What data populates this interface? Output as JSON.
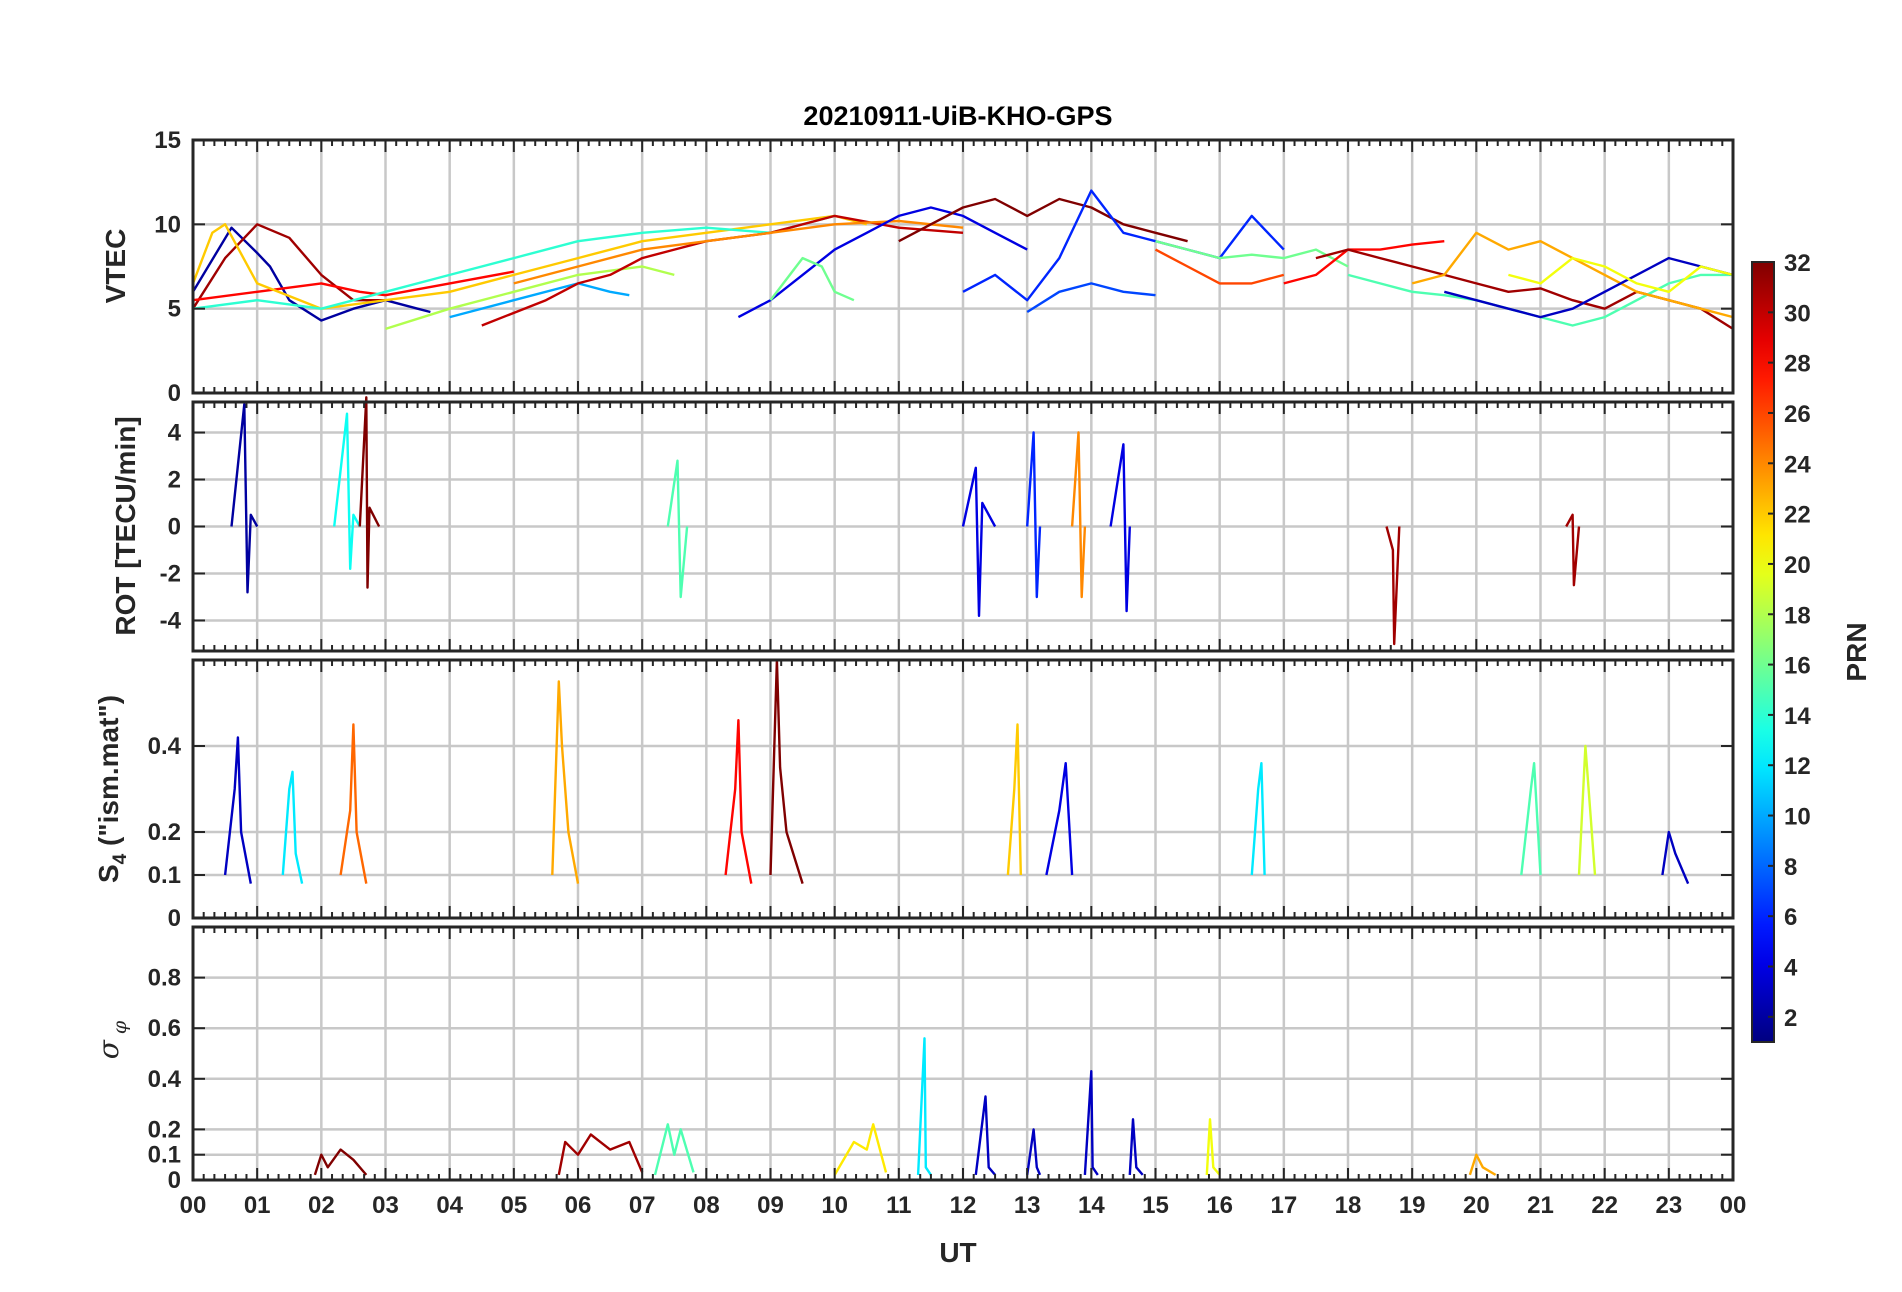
{
  "title": "20210911-UiB-KHO-GPS",
  "xaxis": {
    "label": "UT",
    "range": [
      0,
      24
    ],
    "ticks": [
      "00",
      "01",
      "02",
      "03",
      "04",
      "05",
      "06",
      "07",
      "08",
      "09",
      "10",
      "11",
      "12",
      "13",
      "14",
      "15",
      "16",
      "17",
      "18",
      "19",
      "20",
      "21",
      "22",
      "23",
      "00"
    ]
  },
  "colorbar": {
    "label": "PRN",
    "range": [
      1,
      32
    ],
    "ticks": [
      "2",
      "4",
      "6",
      "8",
      "10",
      "12",
      "14",
      "16",
      "18",
      "20",
      "22",
      "24",
      "26",
      "28",
      "30",
      "32"
    ]
  },
  "chart_data": [
    {
      "type": "line",
      "name": "VTEC",
      "ylabel": "VTEC",
      "ylim": [
        0,
        15
      ],
      "ytick_labels": [
        "0",
        "5",
        "10",
        "15"
      ],
      "grid": true,
      "series": [
        {
          "prn": 2,
          "x": [
            0,
            0.6,
            1.0,
            1.2,
            1.5,
            2.0,
            2.5,
            3.0,
            3.5,
            3.7
          ],
          "y": [
            6.0,
            9.8,
            8.3,
            7.5,
            5.5,
            4.3,
            5.0,
            5.5,
            5.0,
            4.8
          ]
        },
        {
          "prn": 31,
          "x": [
            0,
            0.5,
            1.0,
            1.5,
            2.0,
            2.5,
            3.0
          ],
          "y": [
            5.0,
            8.0,
            10.0,
            9.2,
            7.0,
            5.5,
            5.5
          ]
        },
        {
          "prn": 28,
          "x": [
            0,
            1.0,
            2.0,
            2.6,
            3.0,
            4.0,
            5.0
          ],
          "y": [
            5.5,
            6.0,
            6.5,
            6.0,
            5.8,
            6.5,
            7.2
          ]
        },
        {
          "prn": 22,
          "x": [
            0,
            0.3,
            0.5,
            1.0,
            2.0,
            3.0,
            4.0,
            5.0,
            6.0,
            7.0,
            8.0,
            9.0,
            10.0,
            10.5
          ],
          "y": [
            6.5,
            9.5,
            10.0,
            6.5,
            5.0,
            5.5,
            6.0,
            7.0,
            8.0,
            9.0,
            9.5,
            10.0,
            10.5,
            10.0
          ]
        },
        {
          "prn": 14,
          "x": [
            0,
            1.0,
            2.0,
            3.0,
            4.0,
            5.0,
            6.0,
            7.0,
            8.0,
            9.0,
            10.0
          ],
          "y": [
            5.0,
            5.5,
            5.0,
            6.0,
            7.0,
            8.0,
            9.0,
            9.5,
            9.8,
            9.5,
            10.5
          ]
        },
        {
          "prn": 18,
          "x": [
            3.0,
            4.0,
            5.0,
            6.0,
            7.0,
            7.5
          ],
          "y": [
            3.8,
            5.0,
            6.0,
            7.0,
            7.5,
            7.0
          ]
        },
        {
          "prn": 10,
          "x": [
            4.0,
            5.0,
            6.0,
            6.5,
            6.8
          ],
          "y": [
            4.5,
            5.5,
            6.5,
            6.0,
            5.8
          ]
        },
        {
          "prn": 30,
          "x": [
            4.5,
            5.5,
            6.0,
            6.5,
            7.0,
            7.5,
            8.0,
            9.0,
            10.0,
            11.0,
            12.0
          ],
          "y": [
            4.0,
            5.5,
            6.5,
            7.0,
            8.0,
            8.5,
            9.0,
            9.5,
            10.5,
            9.8,
            9.5
          ]
        },
        {
          "prn": 24,
          "x": [
            5.0,
            6.0,
            7.0,
            8.0,
            9.0,
            10.0,
            11.0,
            12.0
          ],
          "y": [
            6.5,
            7.5,
            8.5,
            9.0,
            9.5,
            10.0,
            10.2,
            9.8
          ]
        },
        {
          "prn": 4,
          "x": [
            8.5,
            9.0,
            9.5,
            10.0,
            10.5,
            11.0,
            11.5,
            12.0,
            12.5,
            13.0
          ],
          "y": [
            4.5,
            5.5,
            7.0,
            8.5,
            9.5,
            10.5,
            11.0,
            10.5,
            9.5,
            8.5
          ]
        },
        {
          "prn": 16,
          "x": [
            9.0,
            9.3,
            9.5,
            9.8,
            10.0,
            10.3
          ],
          "y": [
            5.5,
            7.0,
            8.0,
            7.5,
            6.0,
            5.5
          ]
        },
        {
          "prn": 32,
          "x": [
            11.0,
            11.5,
            12.0,
            12.5,
            13.0,
            13.5,
            14.0,
            14.5,
            15.0,
            15.5
          ],
          "y": [
            9.0,
            10.0,
            11.0,
            11.5,
            10.5,
            11.5,
            11.0,
            10.0,
            9.5,
            9.0
          ]
        },
        {
          "prn": 6,
          "x": [
            12.0,
            12.5,
            13.0,
            13.5,
            14.0,
            14.5,
            15.0,
            15.5,
            16.0,
            16.5,
            17.0
          ],
          "y": [
            6.0,
            7.0,
            5.5,
            8.0,
            12.0,
            9.5,
            9.0,
            8.5,
            8.0,
            10.5,
            8.5
          ]
        },
        {
          "prn": 7,
          "x": [
            13.0,
            13.5,
            14.0,
            14.5,
            15.0
          ],
          "y": [
            4.8,
            6.0,
            6.5,
            6.0,
            5.8
          ]
        },
        {
          "prn": 26,
          "x": [
            15.0,
            15.5,
            16.0,
            16.5,
            17.0
          ],
          "y": [
            8.5,
            7.5,
            6.5,
            6.5,
            7.0
          ]
        },
        {
          "prn": 16,
          "x": [
            15.0,
            15.5,
            16.0,
            16.5,
            17.0,
            17.5,
            18.0
          ],
          "y": [
            9.0,
            8.5,
            8.0,
            8.2,
            8.0,
            8.5,
            7.5
          ]
        },
        {
          "prn": 28,
          "x": [
            17.0,
            17.5,
            18.0,
            18.5,
            19.0,
            19.5
          ],
          "y": [
            6.5,
            7.0,
            8.5,
            8.5,
            8.8,
            9.0
          ]
        },
        {
          "prn": 31,
          "x": [
            17.5,
            18.0,
            18.5,
            19.0,
            19.5,
            20.0,
            20.5,
            21.0,
            21.5,
            22.0,
            22.5,
            23.0,
            23.5,
            24.0
          ],
          "y": [
            8.0,
            8.5,
            8.0,
            7.5,
            7.0,
            6.5,
            6.0,
            6.2,
            5.5,
            5.0,
            6.0,
            5.5,
            5.0,
            3.8
          ]
        },
        {
          "prn": 15,
          "x": [
            18.0,
            18.5,
            19.0,
            19.5,
            20.0,
            20.5,
            21.0,
            21.5,
            22.0,
            22.5,
            23.0,
            23.5,
            24.0
          ],
          "y": [
            7.0,
            6.5,
            6.0,
            5.8,
            5.5,
            5.0,
            4.5,
            4.0,
            4.5,
            5.5,
            6.5,
            7.0,
            7.0
          ]
        },
        {
          "prn": 23,
          "x": [
            19.0,
            19.5,
            20.0,
            20.5,
            21.0,
            21.5,
            22.0,
            22.5,
            23.0,
            23.5,
            24.0
          ],
          "y": [
            6.5,
            7.0,
            9.5,
            8.5,
            9.0,
            8.0,
            7.0,
            6.0,
            5.5,
            5.0,
            4.5
          ]
        },
        {
          "prn": 3,
          "x": [
            19.5,
            20.0,
            20.5,
            21.0,
            21.5,
            22.0,
            22.5,
            23.0,
            23.5,
            24.0
          ],
          "y": [
            6.0,
            5.5,
            5.0,
            4.5,
            5.0,
            6.0,
            7.0,
            8.0,
            7.5,
            7.0
          ]
        },
        {
          "prn": 20,
          "x": [
            20.5,
            21.0,
            21.5,
            22.0,
            22.5,
            23.0,
            23.5,
            24.0
          ],
          "y": [
            7.0,
            6.5,
            8.0,
            7.5,
            6.5,
            6.0,
            7.5,
            7.0
          ]
        }
      ]
    },
    {
      "type": "line",
      "name": "ROT",
      "ylabel": "ROT [TECU/min]",
      "ylim": [
        -5.3,
        5.3
      ],
      "ytick_labels": [
        "-4",
        "-2",
        "0",
        "2",
        "4"
      ],
      "grid": true,
      "series": [
        {
          "prn": 2,
          "x": [
            0.6,
            0.8,
            0.85,
            0.9,
            1.0
          ],
          "y": [
            0.0,
            5.2,
            -2.8,
            0.5,
            0.0
          ]
        },
        {
          "prn": 13,
          "x": [
            2.2,
            2.4,
            2.45,
            2.5,
            2.6
          ],
          "y": [
            0.0,
            4.8,
            -1.8,
            0.5,
            0.0
          ]
        },
        {
          "prn": 32,
          "x": [
            2.6,
            2.7,
            2.72,
            2.75,
            2.9
          ],
          "y": [
            0.0,
            5.5,
            -2.6,
            0.8,
            0.0
          ]
        },
        {
          "prn": 15,
          "x": [
            7.4,
            7.55,
            7.6,
            7.7
          ],
          "y": [
            0.0,
            2.8,
            -3.0,
            0.0
          ]
        },
        {
          "prn": 4,
          "x": [
            12.0,
            12.2,
            12.25,
            12.3,
            12.5
          ],
          "y": [
            0.0,
            2.5,
            -3.8,
            1.0,
            0.0
          ]
        },
        {
          "prn": 6,
          "x": [
            13.0,
            13.1,
            13.15,
            13.2
          ],
          "y": [
            0.0,
            4.0,
            -3.0,
            0.0
          ]
        },
        {
          "prn": 24,
          "x": [
            13.7,
            13.8,
            13.85,
            13.9
          ],
          "y": [
            0.0,
            4.0,
            -3.0,
            0.0
          ]
        },
        {
          "prn": 4,
          "x": [
            14.3,
            14.5,
            14.55,
            14.6
          ],
          "y": [
            0.0,
            3.5,
            -3.6,
            0.0
          ]
        },
        {
          "prn": 31,
          "x": [
            18.6,
            18.7,
            18.72,
            18.8
          ],
          "y": [
            0.0,
            -1.0,
            -5.0,
            0.0
          ]
        },
        {
          "prn": 31,
          "x": [
            21.4,
            21.5,
            21.52,
            21.6
          ],
          "y": [
            0.0,
            0.5,
            -2.5,
            0.0
          ]
        }
      ]
    },
    {
      "type": "line",
      "name": "S4",
      "ylabel": "S4 (\"ism.mat\")",
      "ylim": [
        0,
        0.6
      ],
      "ytick_labels": [
        "0",
        "0.1",
        "0.2",
        "0.4"
      ],
      "grid": true,
      "series": [
        {
          "prn": 3,
          "x": [
            0.5,
            0.65,
            0.7,
            0.75,
            0.9
          ],
          "y": [
            0.1,
            0.3,
            0.42,
            0.2,
            0.08
          ]
        },
        {
          "prn": 12,
          "x": [
            1.4,
            1.5,
            1.55,
            1.6,
            1.7
          ],
          "y": [
            0.1,
            0.3,
            0.34,
            0.15,
            0.08
          ]
        },
        {
          "prn": 25,
          "x": [
            2.3,
            2.45,
            2.5,
            2.55,
            2.7
          ],
          "y": [
            0.1,
            0.25,
            0.45,
            0.2,
            0.08
          ]
        },
        {
          "prn": 23,
          "x": [
            5.6,
            5.7,
            5.75,
            5.85,
            6.0
          ],
          "y": [
            0.1,
            0.55,
            0.4,
            0.2,
            0.08
          ]
        },
        {
          "prn": 28,
          "x": [
            8.3,
            8.45,
            8.5,
            8.55,
            8.7
          ],
          "y": [
            0.1,
            0.3,
            0.46,
            0.2,
            0.08
          ]
        },
        {
          "prn": 32,
          "x": [
            9.0,
            9.1,
            9.15,
            9.25,
            9.5
          ],
          "y": [
            0.1,
            0.6,
            0.35,
            0.2,
            0.08
          ]
        },
        {
          "prn": 22,
          "x": [
            12.7,
            12.8,
            12.85,
            12.9
          ],
          "y": [
            0.1,
            0.3,
            0.45,
            0.1
          ]
        },
        {
          "prn": 4,
          "x": [
            13.3,
            13.5,
            13.6,
            13.7
          ],
          "y": [
            0.1,
            0.25,
            0.36,
            0.1
          ]
        },
        {
          "prn": 12,
          "x": [
            16.5,
            16.6,
            16.65,
            16.7
          ],
          "y": [
            0.1,
            0.3,
            0.36,
            0.1
          ]
        },
        {
          "prn": 15,
          "x": [
            20.7,
            20.85,
            20.9,
            21.0
          ],
          "y": [
            0.1,
            0.3,
            0.36,
            0.1
          ]
        },
        {
          "prn": 19,
          "x": [
            21.6,
            21.7,
            21.75,
            21.85
          ],
          "y": [
            0.1,
            0.4,
            0.3,
            0.1
          ]
        },
        {
          "prn": 3,
          "x": [
            22.9,
            23.0,
            23.1,
            23.3
          ],
          "y": [
            0.1,
            0.2,
            0.15,
            0.08
          ]
        }
      ]
    },
    {
      "type": "line",
      "name": "sigma_phi",
      "ylabel": "σφ",
      "ylim": [
        0,
        1.0
      ],
      "ytick_labels": [
        "0",
        "0.1",
        "0.2",
        "0.4",
        "0.6",
        "0.8"
      ],
      "grid": true,
      "series": [
        {
          "prn": 32,
          "x": [
            1.9,
            2.0,
            2.1,
            2.3,
            2.5,
            2.7
          ],
          "y": [
            0.02,
            0.1,
            0.05,
            0.12,
            0.08,
            0.02
          ]
        },
        {
          "prn": 31,
          "x": [
            5.7,
            5.8,
            6.0,
            6.2,
            6.5,
            6.8,
            7.0
          ],
          "y": [
            0.02,
            0.15,
            0.1,
            0.18,
            0.12,
            0.15,
            0.03
          ]
        },
        {
          "prn": 15,
          "x": [
            7.2,
            7.4,
            7.5,
            7.6,
            7.8
          ],
          "y": [
            0.02,
            0.22,
            0.1,
            0.2,
            0.03
          ]
        },
        {
          "prn": 21,
          "x": [
            10.0,
            10.3,
            10.5,
            10.6,
            10.8
          ],
          "y": [
            0.02,
            0.15,
            0.12,
            0.22,
            0.03
          ]
        },
        {
          "prn": 12,
          "x": [
            11.3,
            11.4,
            11.42,
            11.5
          ],
          "y": [
            0.02,
            0.56,
            0.05,
            0.02
          ]
        },
        {
          "prn": 3,
          "x": [
            12.2,
            12.35,
            12.4,
            12.5
          ],
          "y": [
            0.02,
            0.33,
            0.05,
            0.02
          ]
        },
        {
          "prn": 3,
          "x": [
            13.0,
            13.1,
            13.15,
            13.2
          ],
          "y": [
            0.02,
            0.2,
            0.05,
            0.02
          ]
        },
        {
          "prn": 3,
          "x": [
            13.9,
            14.0,
            14.02,
            14.1
          ],
          "y": [
            0.02,
            0.43,
            0.05,
            0.02
          ]
        },
        {
          "prn": 3,
          "x": [
            14.6,
            14.65,
            14.7,
            14.8
          ],
          "y": [
            0.02,
            0.24,
            0.05,
            0.02
          ]
        },
        {
          "prn": 20,
          "x": [
            15.8,
            15.85,
            15.9,
            16.0
          ],
          "y": [
            0.02,
            0.24,
            0.05,
            0.02
          ]
        },
        {
          "prn": 23,
          "x": [
            19.9,
            20.0,
            20.1,
            20.3
          ],
          "y": [
            0.02,
            0.1,
            0.05,
            0.02
          ]
        }
      ]
    }
  ]
}
